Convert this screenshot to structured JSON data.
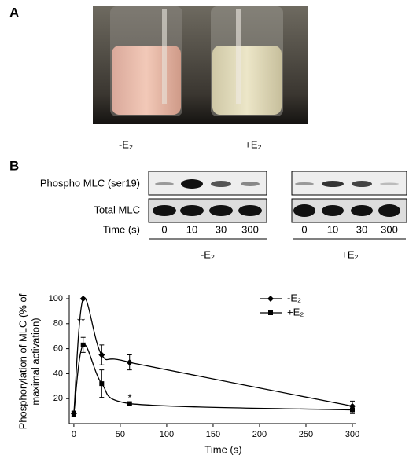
{
  "panels": {
    "a": "A",
    "b": "B"
  },
  "photo": {
    "captions": [
      "-E₂",
      "+E₂"
    ]
  },
  "blots": {
    "rows": [
      "Phospho MLC (ser19)",
      "Total MLC"
    ],
    "time_label": "Time (s)",
    "groups": [
      {
        "label": "-E₂",
        "times": [
          "0",
          "10",
          "30",
          "300"
        ]
      },
      {
        "label": "+E₂",
        "times": [
          "0",
          "10",
          "30",
          "300"
        ]
      }
    ]
  },
  "chart_data": {
    "type": "line",
    "x_label": "Time (s)",
    "y_label": [
      "Phosphorylation of MLC (% of",
      "maximal activation)"
    ],
    "x": [
      0,
      10,
      30,
      60,
      300
    ],
    "series": [
      {
        "name": "-E₂",
        "color": "#000000",
        "marker": "diamond",
        "values": [
          8,
          100,
          55,
          49,
          14
        ],
        "errors": [
          2,
          0,
          8,
          6,
          4
        ]
      },
      {
        "name": "+E₂",
        "color": "#000000",
        "marker": "square",
        "values": [
          8,
          63,
          32,
          16,
          11
        ],
        "errors": [
          2,
          6,
          11,
          1,
          3
        ]
      }
    ],
    "annotations": [
      "**",
      "*"
    ],
    "xlim": [
      -5,
      300
    ],
    "xticks": [
      0,
      50,
      100,
      150,
      200,
      250,
      300
    ],
    "ylim": [
      0,
      100
    ],
    "yticks": [
      20,
      40,
      60,
      80,
      100
    ],
    "legend": "upper right"
  }
}
